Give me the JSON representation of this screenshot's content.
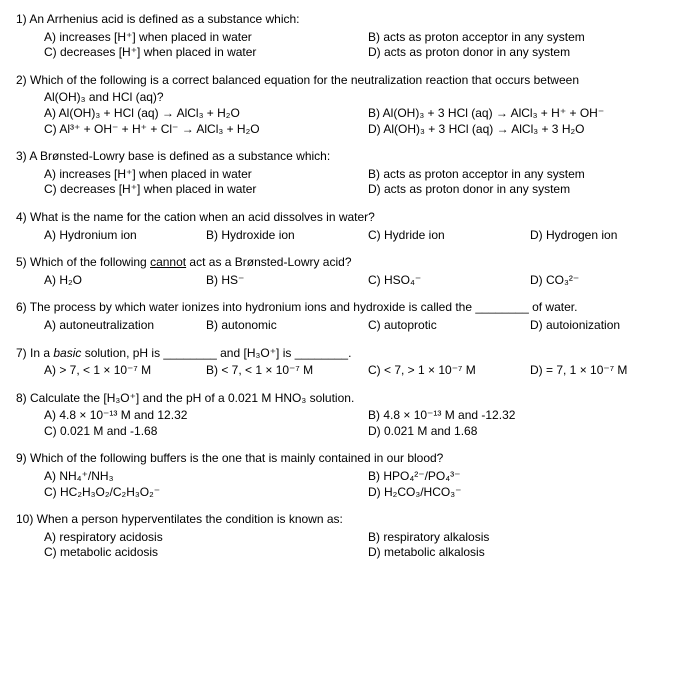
{
  "q1": {
    "stem": "1) An Arrhenius acid is defined as a substance which:",
    "a": "A) increases [H⁺] when placed in water",
    "b": "B) acts as proton acceptor in any system",
    "c": "C) decreases [H⁺] when placed in water",
    "d": "D) acts as proton donor in any system"
  },
  "q2": {
    "stem1": "2) Which of the following is a correct balanced equation for the neutralization reaction that occurs between",
    "stem2": "Al(OH)₃ and HCl (aq)?",
    "a": "A) Al(OH)₃ + HCl (aq) → AlCl₃ + H₂O",
    "b": "B) Al(OH)₃ + 3 HCl (aq) → AlCl₃ + H⁺ + OH⁻",
    "c": "C) Al³⁺ + OH⁻ + H⁺ + Cl⁻ → AlCl₃ + H₂O",
    "d": "D) Al(OH)₃ + 3 HCl (aq) → AlCl₃ + 3 H₂O"
  },
  "q3": {
    "stem": "3) A Brønsted-Lowry base is defined as a substance which:",
    "a": "A) increases [H⁺] when placed in water",
    "b": "B) acts as proton acceptor in any system",
    "c": "C) decreases [H⁺] when placed in water",
    "d": "D) acts as proton donor in any system"
  },
  "q4": {
    "stem": "4) What is the name for the cation when an acid dissolves in water?",
    "a": "A) Hydronium ion",
    "b": "B) Hydroxide ion",
    "c": "C) Hydride ion",
    "d": "D) Hydrogen ion"
  },
  "q5": {
    "stem": "5) Which of the following cannot act as a Brønsted-Lowry acid?",
    "a": "A) H₂O",
    "b": "B) HS⁻",
    "c": "C) HSO₄⁻",
    "d": "D) CO₃²⁻"
  },
  "q6": {
    "stem": "6) The process by which water ionizes into hydronium ions and hydroxide is called the ________ of water.",
    "a": "A) autoneutralization",
    "b": "B) autonomic",
    "c": "C) autoprotic",
    "d": "D) autoionization"
  },
  "q7": {
    "stem": "7) In a basic solution, pH is ________ and [H₃O⁺] is ________.",
    "a": "A) > 7, < 1 × 10⁻⁷ M",
    "b": "B) < 7, < 1 × 10⁻⁷ M",
    "c": "C) < 7, > 1 × 10⁻⁷ M",
    "d": "D) = 7, 1 × 10⁻⁷ M"
  },
  "q8": {
    "stem": "8) Calculate the [H₃O⁺] and the pH of a 0.021 M HNO₃ solution.",
    "a": "A) 4.8 × 10⁻¹³ M and 12.32",
    "b": "B) 4.8 × 10⁻¹³ M and -12.32",
    "c": "C) 0.021 M and -1.68",
    "d": "D) 0.021 M and 1.68"
  },
  "q9": {
    "stem": "9) Which of the following buffers is the one that is mainly contained in our blood?",
    "a": "A) NH₄⁺/NH₃",
    "b": "B) HPO₄²⁻/PO₄³⁻",
    "c": "C) HC₂H₃O₂/C₂H₃O₂⁻",
    "d": "D) H₂CO₃/HCO₃⁻"
  },
  "q10": {
    "stem": "10) When a person hyperventilates the condition is known as:",
    "a": "A) respiratory acidosis",
    "b": "B) respiratory alkalosis",
    "c": "C) metabolic acidosis",
    "d": "D) metabolic alkalosis"
  }
}
